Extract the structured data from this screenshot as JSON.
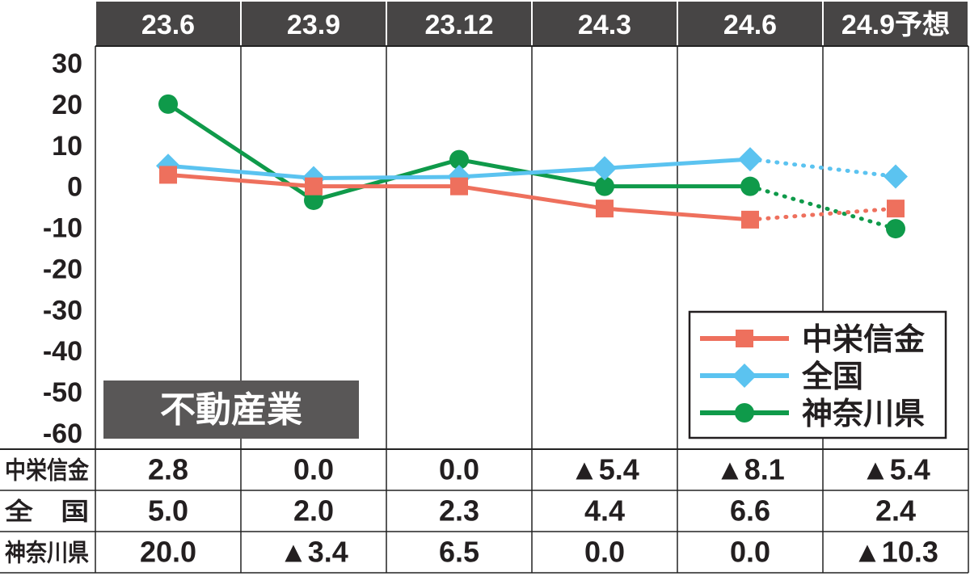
{
  "panel_label": "不動産業",
  "chart_data": {
    "type": "line",
    "categories": [
      "23.6",
      "23.9",
      "23.12",
      "24.3",
      "24.6",
      "24.9予想"
    ],
    "forecast_from_index": 4,
    "ylim": [
      -60,
      30
    ],
    "yticks": [
      "30",
      "20",
      "10",
      "0",
      "-10",
      "-20",
      "-30",
      "-40",
      "-50",
      "-60"
    ],
    "grid": "vertical",
    "legend_position": "bottom-right",
    "series": [
      {
        "name": "中栄信金",
        "row_label": "中栄信金",
        "color": "#ee705d",
        "marker": "square",
        "values": [
          2.8,
          0.0,
          0.0,
          -5.4,
          -8.1,
          -5.4
        ],
        "display": [
          "2.8",
          "0.0",
          "0.0",
          "▲5.4",
          "▲8.1",
          "▲5.4"
        ]
      },
      {
        "name": "全国",
        "row_label": "全　国",
        "color": "#5bc3f0",
        "marker": "diamond",
        "values": [
          5.0,
          2.0,
          2.3,
          4.4,
          6.6,
          2.4
        ],
        "display": [
          "5.0",
          "2.0",
          "2.3",
          "4.4",
          "6.6",
          "2.4"
        ]
      },
      {
        "name": "神奈川県",
        "row_label": "神奈川県",
        "color": "#0f9a4a",
        "marker": "circle",
        "values": [
          20.0,
          -3.4,
          6.5,
          0.0,
          0.0,
          -10.3
        ],
        "display": [
          "20.0",
          "▲3.4",
          "6.5",
          "0.0",
          "0.0",
          "▲10.3"
        ]
      }
    ]
  }
}
